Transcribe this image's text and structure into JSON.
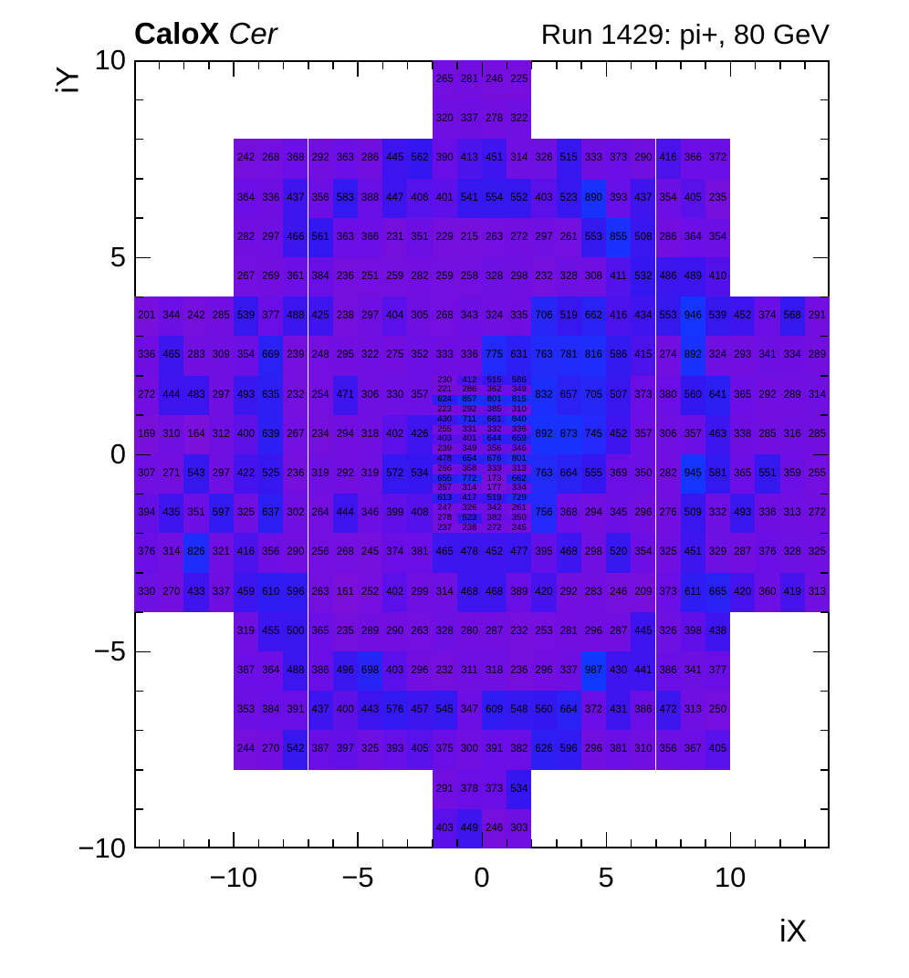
{
  "header": {
    "title_bold": "CaloX",
    "title_italic": "Cer",
    "title_right": "Run 1429: pi+, 80 GeV"
  },
  "chart_data": {
    "type": "heatmap",
    "title": "CaloX Cer — Run 1429: pi+, 80 GeV",
    "xlabel": "iX",
    "ylabel": "iY",
    "xlim": [
      -14,
      14
    ],
    "ylim": [
      -10,
      10
    ],
    "grid": false,
    "legend": "none",
    "x_ticks": {
      "major": [
        -10,
        -5,
        0,
        5,
        10
      ],
      "labels": [
        "−10",
        "−5",
        "0",
        "5",
        "10"
      ],
      "minor_step": 1
    },
    "y_ticks": {
      "major": [
        -10,
        -5,
        0,
        5,
        10
      ],
      "labels": [
        "−10",
        "−5",
        "0",
        "5",
        "10"
      ],
      "minor_step": 1
    },
    "colormap": {
      "stops": [
        [
          161,
          "#7a10da"
        ],
        [
          390,
          "#6a0ee6"
        ],
        [
          425,
          "#4014ee"
        ],
        [
          560,
          "#3417f0"
        ],
        [
          720,
          "#2527f7"
        ],
        [
          990,
          "#1038ff"
        ]
      ]
    },
    "rows": [
      {
        "iy_top": 10,
        "dy": 1,
        "x0": -2,
        "values": [
          265,
          281,
          246,
          225
        ]
      },
      {
        "iy_top": 9,
        "dy": 1,
        "x0": -2,
        "values": [
          320,
          337,
          278,
          322
        ]
      },
      {
        "iy_top": 8,
        "dy": 1,
        "x0": -10,
        "values": [
          242,
          268,
          368,
          292,
          363,
          286,
          445,
          562,
          390,
          413,
          451,
          314,
          326,
          515,
          333,
          373,
          290,
          416,
          366,
          372
        ]
      },
      {
        "iy_top": 7,
        "dy": 1,
        "x0": -10,
        "values": [
          364,
          336,
          437,
          356,
          583,
          388,
          447,
          406,
          401,
          541,
          554,
          552,
          403,
          523,
          890,
          393,
          437,
          354,
          405,
          235
        ]
      },
      {
        "iy_top": 6,
        "dy": 1,
        "x0": -10,
        "values": [
          282,
          297,
          466,
          561,
          363,
          366,
          231,
          351,
          229,
          215,
          263,
          272,
          297,
          261,
          553,
          855,
          508,
          286,
          364,
          354
        ]
      },
      {
        "iy_top": 5,
        "dy": 1,
        "x0": -10,
        "values": [
          267,
          269,
          361,
          384,
          236,
          251,
          259,
          282,
          259,
          258,
          328,
          298,
          232,
          328,
          308,
          411,
          532,
          486,
          489,
          410
        ]
      },
      {
        "iy_top": 4,
        "dy": 1,
        "x0": -14,
        "values": [
          201,
          344,
          242,
          285,
          539,
          377,
          488,
          425,
          238,
          297,
          404,
          305,
          268,
          343,
          324,
          335,
          706,
          519,
          662,
          416,
          434,
          553,
          946,
          539,
          452,
          374,
          568,
          291
        ]
      },
      {
        "iy_top": 3,
        "dy": 1,
        "x0": -14,
        "values": [
          336,
          465,
          283,
          309,
          354,
          669,
          239,
          248,
          295,
          322,
          275,
          352,
          333,
          336,
          775,
          631,
          763,
          781,
          816,
          586,
          415,
          274,
          892,
          324,
          293,
          341,
          334,
          289
        ]
      },
      {
        "iy_top": 2,
        "dy": 1,
        "x0": -14,
        "values": [
          272,
          444,
          483,
          297,
          493,
          635,
          232,
          254,
          471,
          306,
          330,
          357
        ]
      },
      {
        "iy_top": 2,
        "dy": 1,
        "x0": 2,
        "values": [
          832,
          657,
          705,
          507,
          373,
          380,
          560,
          641,
          365,
          292,
          289,
          314
        ]
      },
      {
        "iy_top": 1,
        "dy": 1,
        "x0": -14,
        "values": [
          169,
          310,
          164,
          312,
          400,
          639,
          267,
          234,
          294,
          318,
          402,
          426
        ]
      },
      {
        "iy_top": 1,
        "dy": 1,
        "x0": 2,
        "values": [
          892,
          873,
          745,
          452,
          357,
          306,
          357,
          463,
          338,
          285,
          316,
          285
        ]
      },
      {
        "iy_top": 0,
        "dy": 1,
        "x0": -14,
        "values": [
          307,
          271,
          543,
          297,
          422,
          525,
          236,
          319,
          292,
          319,
          572,
          534
        ]
      },
      {
        "iy_top": 0,
        "dy": 1,
        "x0": 2,
        "values": [
          763,
          664,
          555,
          369,
          350,
          282,
          945,
          581,
          365,
          551,
          359,
          255
        ]
      },
      {
        "iy_top": -1,
        "dy": 1,
        "x0": -14,
        "values": [
          394,
          435,
          351,
          597,
          325,
          637,
          302,
          264,
          444,
          346,
          399,
          408
        ]
      },
      {
        "iy_top": -1,
        "dy": 1,
        "x0": 2,
        "values": [
          756,
          368,
          294,
          345,
          296,
          276,
          509,
          332,
          493,
          336,
          313,
          272
        ]
      },
      {
        "iy_top": -2,
        "dy": 1,
        "x0": -14,
        "values": [
          376,
          314,
          826,
          321,
          416,
          356,
          290,
          256,
          268,
          245,
          374,
          381,
          465,
          478,
          452,
          477,
          395,
          468,
          298,
          520,
          354,
          325,
          451,
          329,
          287,
          376,
          328,
          325
        ]
      },
      {
        "iy_top": -3,
        "dy": 1,
        "x0": -14,
        "values": [
          330,
          270,
          433,
          337,
          459,
          610,
          596,
          263,
          161,
          252,
          402,
          299,
          314,
          468,
          468,
          389,
          420,
          292,
          283,
          246,
          209,
          373,
          611,
          665,
          420,
          360,
          419,
          313
        ]
      },
      {
        "iy_top": -4,
        "dy": 1,
        "x0": -10,
        "values": [
          319,
          455,
          500,
          365,
          235,
          289,
          290,
          263,
          328,
          280,
          287,
          232,
          253,
          281,
          296,
          287,
          445,
          326,
          398,
          438
        ]
      },
      {
        "iy_top": -5,
        "dy": 1,
        "x0": -10,
        "values": [
          367,
          364,
          488,
          386,
          496,
          698,
          403,
          296,
          232,
          311,
          318,
          236,
          296,
          337,
          987,
          430,
          441,
          386,
          341,
          377
        ]
      },
      {
        "iy_top": -6,
        "dy": 1,
        "x0": -10,
        "values": [
          353,
          384,
          391,
          437,
          400,
          443,
          576,
          457,
          545,
          347,
          609,
          548,
          560,
          664,
          372,
          431,
          386,
          472,
          313,
          250
        ]
      },
      {
        "iy_top": -7,
        "dy": 1,
        "x0": -10,
        "values": [
          244,
          270,
          542,
          387,
          397,
          325,
          393,
          405,
          375,
          300,
          391,
          382,
          626,
          596,
          296,
          381,
          310,
          356,
          367,
          405
        ]
      },
      {
        "iy_top": -8,
        "dy": 1,
        "x0": -2,
        "values": [
          291,
          378,
          373,
          534
        ]
      },
      {
        "iy_top": -9,
        "dy": 1,
        "x0": -2,
        "values": [
          403,
          449,
          246,
          303
        ]
      },
      {
        "iy_top": 2.0,
        "dy": 0.25,
        "x0": -2,
        "values": [
          230,
          412,
          515,
          586
        ]
      },
      {
        "iy_top": 1.75,
        "dy": 0.25,
        "x0": -2,
        "values": [
          221,
          286,
          362,
          349
        ]
      },
      {
        "iy_top": 1.5,
        "dy": 0.25,
        "x0": -2,
        "values": [
          624,
          857,
          801,
          815
        ]
      },
      {
        "iy_top": 1.25,
        "dy": 0.25,
        "x0": -2,
        "values": [
          223,
          292,
          385,
          310
        ]
      },
      {
        "iy_top": 1.0,
        "dy": 0.25,
        "x0": -2,
        "values": [
          430,
          711,
          661,
          840
        ]
      },
      {
        "iy_top": 0.75,
        "dy": 0.25,
        "x0": -2,
        "values": [
          255,
          331,
          332,
          336
        ]
      },
      {
        "iy_top": 0.5,
        "dy": 0.25,
        "x0": -2,
        "values": [
          403,
          401,
          644,
          659
        ]
      },
      {
        "iy_top": 0.25,
        "dy": 0.25,
        "x0": -2,
        "values": [
          239,
          349,
          356,
          346
        ]
      },
      {
        "iy_top": 0.0,
        "dy": 0.25,
        "x0": -2,
        "values": [
          478,
          654,
          676,
          801
        ]
      },
      {
        "iy_top": -0.25,
        "dy": 0.25,
        "x0": -2,
        "values": [
          266,
          358,
          333,
          313
        ]
      },
      {
        "iy_top": -0.5,
        "dy": 0.25,
        "x0": -2,
        "values": [
          655,
          772,
          173,
          662
        ]
      },
      {
        "iy_top": -0.75,
        "dy": 0.25,
        "x0": -2,
        "values": [
          267,
          314,
          177,
          334
        ]
      },
      {
        "iy_top": -1.0,
        "dy": 0.25,
        "x0": -2,
        "values": [
          613,
          417,
          519,
          729
        ]
      },
      {
        "iy_top": -1.25,
        "dy": 0.25,
        "x0": -2,
        "values": [
          247,
          326,
          342,
          261
        ]
      },
      {
        "iy_top": -1.5,
        "dy": 0.25,
        "x0": -2,
        "values": [
          278,
          523,
          382,
          350
        ]
      },
      {
        "iy_top": -1.75,
        "dy": 0.25,
        "x0": -2,
        "values": [
          237,
          238,
          272,
          245
        ]
      }
    ]
  }
}
